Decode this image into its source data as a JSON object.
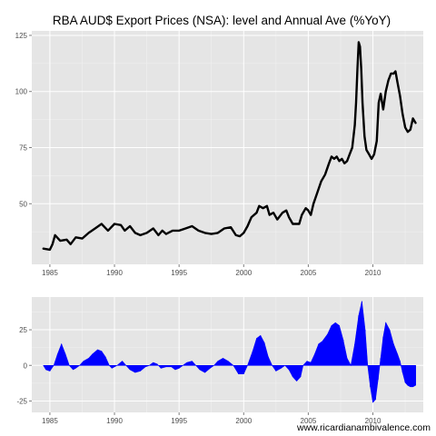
{
  "title": "RBA AUD$ Export Prices (NSA): level and Annual Ave (%YoY)",
  "credit": "www.ricardianambivalence.com",
  "colors": {
    "panel_bg": "#e5e5e5",
    "grid_major": "#ffffff",
    "grid_minor": "#f2f2f2",
    "level_line": "#000000",
    "change_fill": "#0000ff",
    "tick_text": "#4d4d4d"
  },
  "chart_data": [
    {
      "type": "line",
      "name": "level",
      "xlim": [
        1983.6,
        2013.9
      ],
      "ylim": [
        23,
        127
      ],
      "x_ticks": [
        1985,
        1990,
        1995,
        2000,
        2005,
        2010
      ],
      "x_tick_labels": [
        "1985",
        "1990",
        "1995",
        "2000",
        "2005",
        "2010"
      ],
      "y_ticks": [
        50,
        75,
        100,
        125
      ],
      "y_tick_labels": [
        "50",
        "75",
        "100",
        "125"
      ],
      "grid": true,
      "points": [
        [
          1984.5,
          30
        ],
        [
          1985.0,
          29.5
        ],
        [
          1985.2,
          32
        ],
        [
          1985.4,
          36
        ],
        [
          1985.8,
          33.5
        ],
        [
          1986.3,
          34
        ],
        [
          1986.6,
          32
        ],
        [
          1987.0,
          35
        ],
        [
          1987.5,
          34.5
        ],
        [
          1988.0,
          37
        ],
        [
          1988.5,
          39
        ],
        [
          1989.0,
          41
        ],
        [
          1989.5,
          38
        ],
        [
          1990.0,
          41
        ],
        [
          1990.5,
          40.5
        ],
        [
          1990.8,
          38
        ],
        [
          1991.2,
          40
        ],
        [
          1991.6,
          37
        ],
        [
          1992.0,
          36
        ],
        [
          1992.5,
          37
        ],
        [
          1993.0,
          39
        ],
        [
          1993.4,
          36
        ],
        [
          1993.7,
          38
        ],
        [
          1994.0,
          36.5
        ],
        [
          1994.5,
          38
        ],
        [
          1995.0,
          38
        ],
        [
          1995.5,
          39
        ],
        [
          1996.0,
          40
        ],
        [
          1996.5,
          38
        ],
        [
          1997.0,
          37
        ],
        [
          1997.5,
          36.5
        ],
        [
          1998.0,
          37
        ],
        [
          1998.5,
          39
        ],
        [
          1999.0,
          39.5
        ],
        [
          1999.4,
          36
        ],
        [
          1999.7,
          35.5
        ],
        [
          2000.0,
          37
        ],
        [
          2000.3,
          40
        ],
        [
          2000.6,
          44
        ],
        [
          2001.0,
          46
        ],
        [
          2001.2,
          49
        ],
        [
          2001.5,
          48
        ],
        [
          2001.8,
          49
        ],
        [
          2002.0,
          45
        ],
        [
          2002.3,
          46
        ],
        [
          2002.6,
          43
        ],
        [
          2003.0,
          46
        ],
        [
          2003.3,
          47
        ],
        [
          2003.5,
          44
        ],
        [
          2003.8,
          41
        ],
        [
          2004.0,
          41
        ],
        [
          2004.3,
          41
        ],
        [
          2004.5,
          45
        ],
        [
          2004.8,
          48
        ],
        [
          2005.0,
          47
        ],
        [
          2005.2,
          45
        ],
        [
          2005.4,
          50
        ],
        [
          2005.7,
          55
        ],
        [
          2006.0,
          60
        ],
        [
          2006.3,
          63
        ],
        [
          2006.6,
          68
        ],
        [
          2006.8,
          71
        ],
        [
          2007.0,
          70
        ],
        [
          2007.2,
          71
        ],
        [
          2007.4,
          69
        ],
        [
          2007.6,
          70
        ],
        [
          2007.8,
          68
        ],
        [
          2008.0,
          69
        ],
        [
          2008.2,
          72
        ],
        [
          2008.4,
          75
        ],
        [
          2008.6,
          85
        ],
        [
          2008.7,
          95
        ],
        [
          2008.8,
          110
        ],
        [
          2008.9,
          122
        ],
        [
          2009.0,
          120
        ],
        [
          2009.1,
          110
        ],
        [
          2009.2,
          95
        ],
        [
          2009.35,
          80
        ],
        [
          2009.5,
          74
        ],
        [
          2009.7,
          72
        ],
        [
          2009.9,
          70
        ],
        [
          2010.1,
          72
        ],
        [
          2010.3,
          78
        ],
        [
          2010.45,
          95
        ],
        [
          2010.6,
          99
        ],
        [
          2010.8,
          92
        ],
        [
          2011.0,
          100
        ],
        [
          2011.2,
          105
        ],
        [
          2011.4,
          108
        ],
        [
          2011.6,
          108
        ],
        [
          2011.75,
          109
        ],
        [
          2011.9,
          104
        ],
        [
          2012.1,
          98
        ],
        [
          2012.3,
          90
        ],
        [
          2012.5,
          84
        ],
        [
          2012.7,
          82
        ],
        [
          2012.9,
          83
        ],
        [
          2013.1,
          88
        ],
        [
          2013.3,
          86
        ]
      ]
    },
    {
      "type": "area",
      "name": "annual_ave_pct_yoy",
      "xlim": [
        1983.6,
        2013.9
      ],
      "ylim": [
        -33,
        48
      ],
      "x_ticks": [
        1985,
        1990,
        1995,
        2000,
        2005,
        2010
      ],
      "x_tick_labels": [
        "1985",
        "1990",
        "1995",
        "2000",
        "2005",
        "2010"
      ],
      "y_ticks": [
        -25,
        0,
        25
      ],
      "y_tick_labels": [
        "-25",
        "0",
        "25"
      ],
      "grid": true,
      "points": [
        [
          1984.5,
          0
        ],
        [
          1984.7,
          -3
        ],
        [
          1985.0,
          -4
        ],
        [
          1985.3,
          0
        ],
        [
          1985.6,
          8
        ],
        [
          1985.9,
          15
        ],
        [
          1986.2,
          8
        ],
        [
          1986.5,
          0
        ],
        [
          1986.8,
          -3
        ],
        [
          1987.0,
          -2
        ],
        [
          1987.3,
          0
        ],
        [
          1987.6,
          3
        ],
        [
          1988.0,
          5
        ],
        [
          1988.3,
          8
        ],
        [
          1988.7,
          11
        ],
        [
          1989.0,
          10
        ],
        [
          1989.3,
          6
        ],
        [
          1989.6,
          0
        ],
        [
          1989.8,
          -2
        ],
        [
          1990.2,
          0
        ],
        [
          1990.6,
          3
        ],
        [
          1990.9,
          0
        ],
        [
          1991.2,
          -3
        ],
        [
          1991.6,
          -5
        ],
        [
          1992.0,
          -4
        ],
        [
          1992.4,
          -1
        ],
        [
          1992.7,
          0
        ],
        [
          1993.0,
          2
        ],
        [
          1993.3,
          1
        ],
        [
          1993.6,
          -2
        ],
        [
          1994.0,
          -1
        ],
        [
          1994.4,
          -1
        ],
        [
          1994.7,
          -3
        ],
        [
          1995.0,
          -2
        ],
        [
          1995.3,
          0
        ],
        [
          1995.6,
          2
        ],
        [
          1996.0,
          3
        ],
        [
          1996.3,
          0
        ],
        [
          1996.6,
          -3
        ],
        [
          1997.0,
          -5
        ],
        [
          1997.4,
          -2
        ],
        [
          1997.7,
          0
        ],
        [
          1998.0,
          3
        ],
        [
          1998.4,
          5
        ],
        [
          1998.8,
          3
        ],
        [
          1999.2,
          0
        ],
        [
          1999.6,
          -6
        ],
        [
          2000.0,
          -6
        ],
        [
          2000.3,
          0
        ],
        [
          2000.7,
          10
        ],
        [
          2001.0,
          19
        ],
        [
          2001.3,
          21
        ],
        [
          2001.6,
          16
        ],
        [
          2001.9,
          6
        ],
        [
          2002.2,
          0
        ],
        [
          2002.5,
          -4
        ],
        [
          2002.9,
          -2
        ],
        [
          2003.2,
          0
        ],
        [
          2003.5,
          -3
        ],
        [
          2003.8,
          -8
        ],
        [
          2004.1,
          -11
        ],
        [
          2004.4,
          -8
        ],
        [
          2004.6,
          0
        ],
        [
          2004.9,
          3
        ],
        [
          2005.2,
          2
        ],
        [
          2005.5,
          8
        ],
        [
          2005.8,
          15
        ],
        [
          2006.1,
          17
        ],
        [
          2006.5,
          22
        ],
        [
          2006.8,
          28
        ],
        [
          2007.1,
          30
        ],
        [
          2007.4,
          28
        ],
        [
          2007.7,
          18
        ],
        [
          2008.0,
          5
        ],
        [
          2008.3,
          0
        ],
        [
          2008.6,
          15
        ],
        [
          2008.9,
          35
        ],
        [
          2009.15,
          45
        ],
        [
          2009.4,
          25
        ],
        [
          2009.6,
          0
        ],
        [
          2009.8,
          -15
        ],
        [
          2010.0,
          -26
        ],
        [
          2010.2,
          -24
        ],
        [
          2010.4,
          -10
        ],
        [
          2010.6,
          5
        ],
        [
          2010.8,
          20
        ],
        [
          2011.0,
          30
        ],
        [
          2011.3,
          25
        ],
        [
          2011.6,
          15
        ],
        [
          2011.9,
          8
        ],
        [
          2012.1,
          3
        ],
        [
          2012.3,
          -5
        ],
        [
          2012.5,
          -12
        ],
        [
          2012.7,
          -14
        ],
        [
          2012.9,
          -15
        ],
        [
          2013.1,
          -15
        ],
        [
          2013.3,
          -14
        ]
      ]
    }
  ]
}
